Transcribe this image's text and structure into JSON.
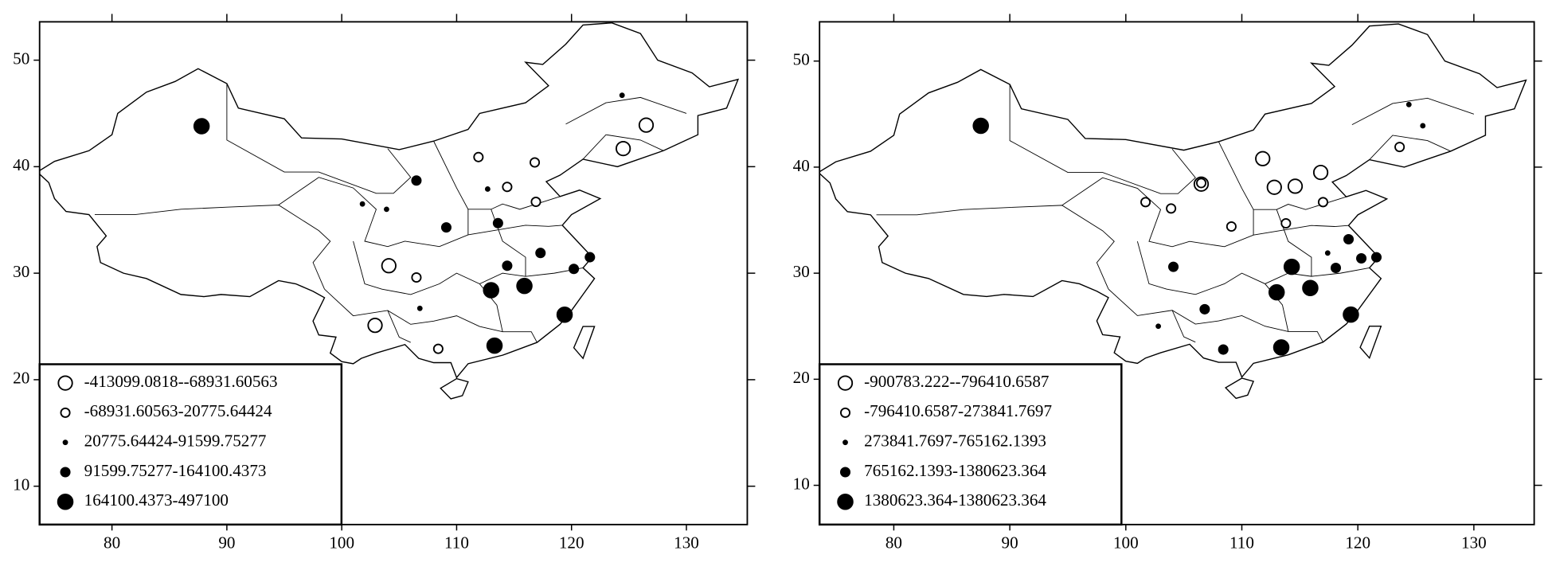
{
  "chart_data": [
    {
      "type": "scatter",
      "xlim": [
        73.7,
        135.3
      ],
      "ylim": [
        6.4,
        53.6
      ],
      "xticks": [
        80,
        90,
        100,
        110,
        120,
        130
      ],
      "yticks": [
        10,
        20,
        30,
        40,
        50
      ],
      "legend": "lower left",
      "series": [
        {
          "name": "-413099.0818--68931.60563",
          "color": "#000000",
          "marker": "open",
          "size": 7,
          "x": [
            104.1,
            102.9,
            124.5,
            126.5
          ],
          "y": [
            30.7,
            25.1,
            41.7,
            43.9
          ]
        },
        {
          "name": "-68931.60563-20775.64424",
          "color": "#000000",
          "marker": "open",
          "size": 4.5,
          "x": [
            111.9,
            114.4,
            116.9,
            106.5,
            108.4,
            116.8
          ],
          "y": [
            40.9,
            38.1,
            36.7,
            29.6,
            22.9,
            40.4
          ]
        },
        {
          "name": "20775.64424-91599.75277",
          "color": "#000000",
          "marker": "filled",
          "size": 2,
          "x": [
            101.8,
            103.9,
            112.7,
            106.8,
            124.4
          ],
          "y": [
            36.5,
            36.0,
            37.9,
            26.7,
            46.7
          ]
        },
        {
          "name": "91599.75277-164100.4373",
          "color": "#000000",
          "marker": "filled",
          "size": 4.5,
          "x": [
            109.1,
            113.6,
            114.4,
            117.3,
            120.2,
            121.6,
            106.5
          ],
          "y": [
            34.3,
            34.7,
            30.7,
            31.9,
            30.4,
            31.5,
            38.7
          ]
        },
        {
          "name": "164100.4373-497100",
          "color": "#000000",
          "marker": "filled",
          "size": 7.5,
          "x": [
            87.8,
            113.0,
            115.9,
            119.4,
            113.3
          ],
          "y": [
            43.8,
            28.4,
            28.8,
            26.1,
            23.2
          ]
        }
      ]
    },
    {
      "type": "scatter",
      "xlim": [
        73.6,
        135.2
      ],
      "ylim": [
        6.3,
        53.7
      ],
      "xticks": [
        80,
        90,
        100,
        110,
        120,
        130
      ],
      "yticks": [
        10,
        20,
        30,
        40,
        50
      ],
      "legend": "lower left",
      "series": [
        {
          "name": "-900783.222--796410.6587",
          "color": "#000000",
          "marker": "open",
          "size": 7,
          "x": [
            111.8,
            112.8,
            114.6,
            116.8,
            106.5
          ],
          "y": [
            40.8,
            38.1,
            38.2,
            39.5,
            38.4
          ]
        },
        {
          "name": "-796410.6587-273841.7697",
          "color": "#000000",
          "marker": "open",
          "size": 4.5,
          "x": [
            101.7,
            103.9,
            109.1,
            113.8,
            117.0,
            123.6,
            106.5
          ],
          "y": [
            36.7,
            36.1,
            34.4,
            34.7,
            36.7,
            41.9,
            38.5
          ]
        },
        {
          "name": "273841.7697-765162.1393",
          "color": "#000000",
          "marker": "filled",
          "size": 2,
          "x": [
            124.4,
            125.6,
            102.8,
            117.4
          ],
          "y": [
            45.9,
            43.9,
            25.0,
            31.9
          ]
        },
        {
          "name": "765162.1393-1380623.364",
          "color": "#000000",
          "marker": "filled",
          "size": 4.5,
          "x": [
            104.1,
            106.8,
            108.4,
            118.1,
            120.3,
            121.6,
            119.2
          ],
          "y": [
            30.6,
            26.6,
            22.8,
            30.5,
            31.4,
            31.5,
            33.2
          ]
        },
        {
          "name": "1380623.364-1380623.364",
          "color": "#000000",
          "marker": "filled",
          "size": 7.5,
          "x": [
            87.5,
            114.3,
            113.0,
            115.9,
            119.4,
            113.4
          ],
          "y": [
            43.9,
            30.6,
            28.2,
            28.6,
            26.1,
            23.0
          ]
        }
      ]
    }
  ]
}
